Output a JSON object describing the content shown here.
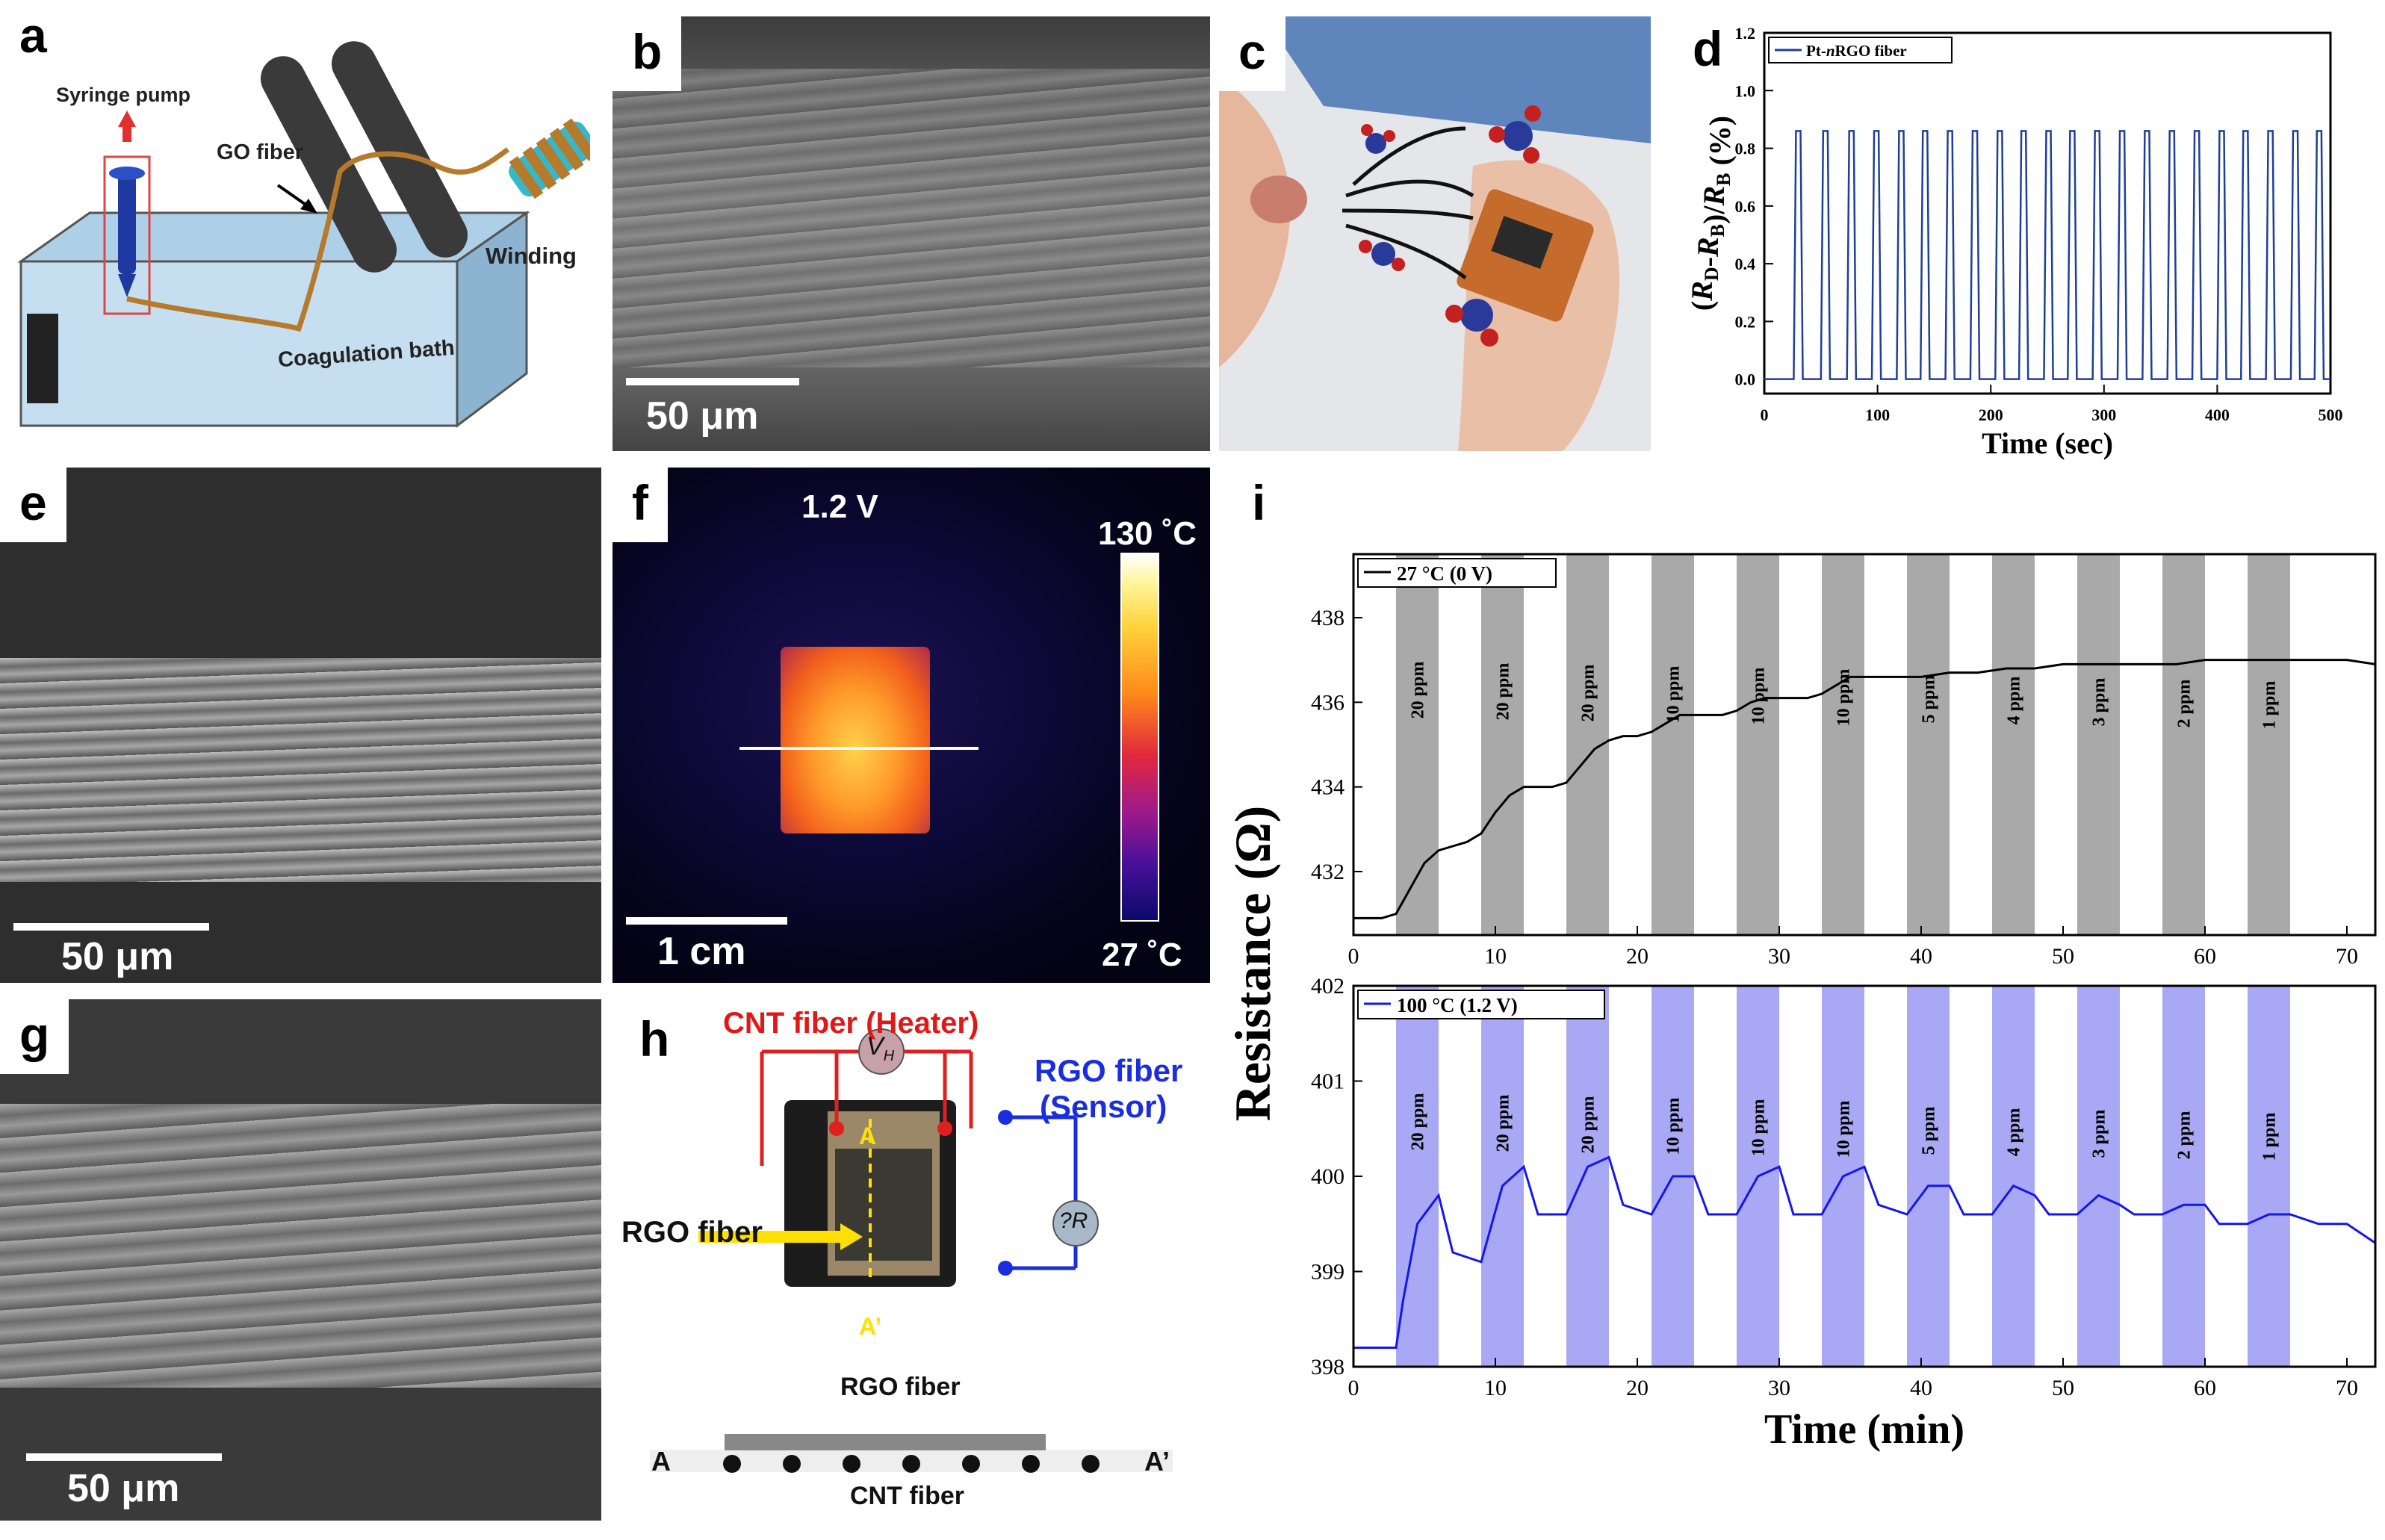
{
  "panels": {
    "a": {
      "label": "a",
      "syringe": "Syringe pump",
      "go_fiber": "GO fiber",
      "winding": "Winding",
      "bath": "Coagulation bath"
    },
    "b": {
      "label": "b",
      "scale": "50 μm"
    },
    "c": {
      "label": "c"
    },
    "d": {
      "label": "d"
    },
    "e": {
      "label": "e",
      "scale": "50 μm"
    },
    "f": {
      "label": "f",
      "voltage": "1.2 V",
      "tmax": "130 ˚C",
      "tmin": "27 ˚C",
      "scale": "1 cm"
    },
    "g": {
      "label": "g",
      "scale": "50 μm"
    },
    "h": {
      "label": "h",
      "heater": "CNT fiber (Heater)",
      "vh": "V",
      "vh_sub": "H",
      "sensor1": "RGO fiber",
      "sensor2": "(Sensor)",
      "dr": "?R",
      "rgo": "RGO fiber",
      "a_top": "A",
      "a_bottom": "A’",
      "rgo_bar": "RGO fiber",
      "a_left": "A",
      "a_right": "A’",
      "cnt": "CNT fiber"
    },
    "i": {
      "label": "i"
    }
  },
  "colors": {
    "line_d": "#1f3f9a",
    "line_top": "#000000",
    "line_bottom": "#1515ee",
    "shade_top": "#a9a9a9",
    "shade_bottom": "#a8a8f4"
  },
  "chart_data": [
    {
      "id": "d",
      "type": "line",
      "legend": "Pt-nRGO fiber",
      "legend_pre": "Pt-",
      "legend_it": "n",
      "legend_post": "RGO fiber",
      "xlabel": "Time (sec)",
      "ylabel": "(R_D-R_B)/R_B (%)",
      "xlim": [
        0,
        500
      ],
      "ylim": [
        -0.05,
        1.2
      ],
      "xticks": [
        0,
        100,
        200,
        300,
        400,
        500
      ],
      "yticks": [
        0.0,
        0.2,
        0.4,
        0.6,
        0.8,
        1.0,
        1.2
      ],
      "pulse_starts": [
        28,
        52,
        75,
        97,
        119,
        140,
        162,
        184,
        206,
        227,
        249,
        270,
        292,
        314,
        336,
        358,
        380,
        402,
        423,
        445,
        467,
        488
      ],
      "pulse_width": 6,
      "pulse_peak": 0.86,
      "baseline": 0.0
    },
    {
      "id": "i-top",
      "type": "line",
      "legend": "27 °C (0 V)",
      "xlim": [
        0,
        72
      ],
      "ylim": [
        430.5,
        439.5
      ],
      "xticks": [
        0,
        10,
        20,
        30,
        40,
        50,
        60,
        70
      ],
      "yticks": [
        432,
        434,
        436,
        438
      ],
      "bands": [
        [
          3,
          6
        ],
        [
          9,
          12
        ],
        [
          15,
          18
        ],
        [
          21,
          24
        ],
        [
          27,
          30
        ],
        [
          33,
          36
        ],
        [
          39,
          42
        ],
        [
          45,
          48
        ],
        [
          51,
          54
        ],
        [
          57,
          60
        ],
        [
          63,
          66
        ]
      ],
      "band_labels": [
        "20 ppm",
        "20 ppm",
        "20 ppm",
        "10 ppm",
        "10 ppm",
        "10 ppm",
        "5 ppm",
        "4 ppm",
        "3 ppm",
        "2 ppm",
        "1 ppm"
      ],
      "x": [
        0,
        2,
        3,
        4,
        5,
        6,
        7,
        8,
        9,
        10,
        11,
        12,
        13,
        14,
        15,
        16,
        17,
        18,
        19,
        20,
        21,
        22,
        23,
        24,
        25,
        26,
        27,
        28,
        29,
        30,
        31,
        32,
        33,
        34,
        35,
        36,
        37,
        38,
        39,
        40,
        42,
        44,
        46,
        48,
        50,
        52,
        54,
        56,
        58,
        60,
        62,
        64,
        66,
        68,
        70,
        72
      ],
      "y": [
        430.9,
        430.9,
        431.0,
        431.6,
        432.2,
        432.5,
        432.6,
        432.7,
        432.9,
        433.4,
        433.8,
        434.0,
        434.0,
        434.0,
        434.1,
        434.5,
        434.9,
        435.1,
        435.2,
        435.2,
        435.3,
        435.5,
        435.7,
        435.7,
        435.7,
        435.7,
        435.8,
        436.0,
        436.1,
        436.1,
        436.1,
        436.1,
        436.2,
        436.4,
        436.6,
        436.6,
        436.6,
        436.6,
        436.6,
        436.6,
        436.7,
        436.7,
        436.8,
        436.8,
        436.9,
        436.9,
        436.9,
        436.9,
        436.9,
        437.0,
        437.0,
        437.0,
        437.0,
        437.0,
        437.0,
        436.9
      ]
    },
    {
      "id": "i-bottom",
      "type": "line",
      "legend": "100 °C (1.2 V)",
      "xlabel": "Time (min)",
      "ylabel": "Resistance (Ω)",
      "xlim": [
        0,
        72
      ],
      "ylim": [
        398,
        402
      ],
      "xticks": [
        0,
        10,
        20,
        30,
        40,
        50,
        60,
        70
      ],
      "yticks": [
        398,
        399,
        400,
        401,
        402
      ],
      "bands": [
        [
          3,
          6
        ],
        [
          9,
          12
        ],
        [
          15,
          18
        ],
        [
          21,
          24
        ],
        [
          27,
          30
        ],
        [
          33,
          36
        ],
        [
          39,
          42
        ],
        [
          45,
          48
        ],
        [
          51,
          54
        ],
        [
          57,
          60
        ],
        [
          63,
          66
        ]
      ],
      "band_labels": [
        "20 ppm",
        "20 ppm",
        "20 ppm",
        "10 ppm",
        "10 ppm",
        "10 ppm",
        "5 ppm",
        "4 ppm",
        "3 ppm",
        "2 ppm",
        "1 ppm"
      ],
      "x": [
        0,
        3,
        3.5,
        4.5,
        6,
        7,
        9,
        10.5,
        12,
        13,
        15,
        16.5,
        18,
        19,
        21,
        22.5,
        24,
        25,
        27,
        28.5,
        30,
        31,
        33,
        34.5,
        36,
        37,
        39,
        40.5,
        42,
        43,
        45,
        46.5,
        48,
        49,
        51,
        52.5,
        54,
        55,
        57,
        58.5,
        60,
        61,
        63,
        64.5,
        66,
        68,
        70,
        72
      ],
      "y": [
        398.2,
        398.2,
        398.7,
        399.5,
        399.8,
        399.2,
        399.1,
        399.9,
        400.1,
        399.6,
        399.6,
        400.1,
        400.2,
        399.7,
        399.6,
        400.0,
        400.0,
        399.6,
        399.6,
        400.0,
        400.1,
        399.6,
        399.6,
        400.0,
        400.1,
        399.7,
        399.6,
        399.9,
        399.9,
        399.6,
        399.6,
        399.9,
        399.8,
        399.6,
        399.6,
        399.8,
        399.7,
        399.6,
        399.6,
        399.7,
        399.7,
        399.5,
        399.5,
        399.6,
        399.6,
        399.5,
        399.5,
        399.3
      ]
    }
  ]
}
